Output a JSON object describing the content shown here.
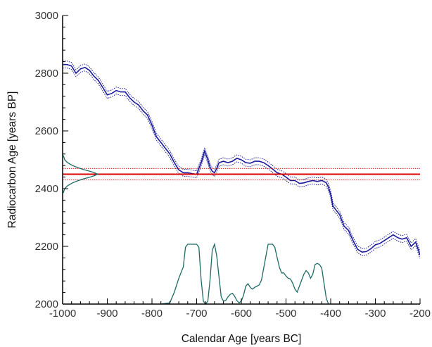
{
  "chart_data": {
    "type": "line",
    "title": "",
    "xlabel": "Calendar Age [years BC]",
    "ylabel": "Radiocarbon Age [years BP]",
    "xlim": [
      -1000,
      -200
    ],
    "ylim": [
      2000,
      3000
    ],
    "x_ticks": [
      -1000,
      -900,
      -800,
      -700,
      -600,
      -500,
      -400,
      -300,
      -200
    ],
    "x_tick_labels": [
      "-1000",
      "-900",
      "-800",
      "-700",
      "-600",
      "-500",
      "-400",
      "-300",
      "-200"
    ],
    "y_ticks": [
      2000,
      2200,
      2400,
      2600,
      2800,
      3000
    ],
    "y_tick_labels": [
      "2000",
      "2200",
      "2400",
      "2600",
      "2800",
      "3000"
    ],
    "grid": false,
    "colors": {
      "calibration_curve": "#1a1a9e",
      "measurement": "#dd0000",
      "distributions": "#1f6b66"
    },
    "series": [
      {
        "role": "calibration_curve",
        "error": 12,
        "x": [
          -1000,
          -990,
          -980,
          -970,
          -960,
          -950,
          -940,
          -930,
          -920,
          -910,
          -900,
          -890,
          -880,
          -870,
          -860,
          -850,
          -840,
          -830,
          -820,
          -810,
          -800,
          -790,
          -780,
          -770,
          -760,
          -750,
          -740,
          -730,
          -720,
          -710,
          -700,
          -690,
          -682,
          -675,
          -670,
          -665,
          -660,
          -655,
          -650,
          -640,
          -630,
          -620,
          -610,
          -600,
          -590,
          -580,
          -570,
          -560,
          -550,
          -540,
          -530,
          -520,
          -510,
          -500,
          -490,
          -480,
          -470,
          -460,
          -450,
          -440,
          -430,
          -420,
          -415,
          -410,
          -405,
          -400,
          -395,
          -390,
          -380,
          -370,
          -360,
          -350,
          -340,
          -330,
          -320,
          -310,
          -300,
          -290,
          -280,
          -270,
          -260,
          -250,
          -240,
          -230,
          -220,
          -210,
          -200
        ],
        "y": [
          2830,
          2830,
          2825,
          2800,
          2815,
          2820,
          2810,
          2790,
          2775,
          2750,
          2725,
          2730,
          2740,
          2735,
          2735,
          2715,
          2700,
          2690,
          2670,
          2655,
          2620,
          2580,
          2560,
          2540,
          2520,
          2490,
          2465,
          2455,
          2455,
          2452,
          2450,
          2490,
          2530,
          2500,
          2475,
          2460,
          2455,
          2470,
          2490,
          2495,
          2490,
          2495,
          2505,
          2500,
          2490,
          2488,
          2495,
          2495,
          2490,
          2480,
          2468,
          2455,
          2450,
          2440,
          2428,
          2428,
          2418,
          2420,
          2425,
          2428,
          2425,
          2428,
          2425,
          2420,
          2405,
          2380,
          2340,
          2330,
          2310,
          2270,
          2255,
          2220,
          2190,
          2180,
          2182,
          2192,
          2205,
          2210,
          2220,
          2230,
          2240,
          2230,
          2225,
          2230,
          2200,
          2215,
          2170
        ]
      },
      {
        "role": "measurement",
        "value": 2450,
        "sigma": 20
      },
      {
        "role": "measured_age_distribution",
        "y": [
          2385,
          2400,
          2410,
          2420,
          2428,
          2435,
          2440,
          2445,
          2450,
          2455,
          2460,
          2465,
          2472,
          2480,
          2490,
          2500,
          2515
        ],
        "density": [
          0.02,
          0.06,
          0.14,
          0.28,
          0.45,
          0.62,
          0.78,
          0.9,
          1.0,
          0.9,
          0.78,
          0.62,
          0.45,
          0.28,
          0.14,
          0.06,
          0.02
        ]
      },
      {
        "role": "calibrated_probability",
        "x": [
          -780,
          -760,
          -750,
          -740,
          -730,
          -725,
          -720,
          -710,
          -700,
          -695,
          -690,
          -685,
          -680,
          -675,
          -670,
          -665,
          -660,
          -655,
          -650,
          -645,
          -640,
          -635,
          -630,
          -625,
          -620,
          -615,
          -610,
          -605,
          -600,
          -595,
          -590,
          -585,
          -580,
          -575,
          -570,
          -565,
          -560,
          -555,
          -550,
          -545,
          -540,
          -535,
          -530,
          -525,
          -520,
          -515,
          -510,
          -505,
          -500,
          -495,
          -490,
          -485,
          -480,
          -475,
          -470,
          -465,
          -460,
          -455,
          -450,
          -445,
          -440,
          -435,
          -430,
          -425,
          -420,
          -415,
          -410,
          -405
        ],
        "density": [
          0,
          0.02,
          0.2,
          0.43,
          0.62,
          0.95,
          1.0,
          1.0,
          1.0,
          0.95,
          0.4,
          0.05,
          0,
          0.05,
          0.4,
          0.9,
          1.0,
          0.8,
          0.45,
          0.12,
          0.05,
          0.06,
          0.12,
          0.16,
          0.18,
          0.13,
          0.06,
          0.02,
          0.05,
          0.15,
          0.3,
          0.34,
          0.28,
          0.25,
          0.28,
          0.3,
          0.32,
          0.4,
          0.6,
          0.8,
          1.0,
          1.0,
          1.0,
          0.95,
          0.78,
          0.62,
          0.52,
          0.52,
          0.47,
          0.43,
          0.42,
          0.35,
          0.25,
          0.2,
          0.3,
          0.4,
          0.5,
          0.56,
          0.52,
          0.43,
          0.5,
          0.66,
          0.68,
          0.66,
          0.6,
          0.35,
          0.1,
          0
        ]
      }
    ]
  }
}
